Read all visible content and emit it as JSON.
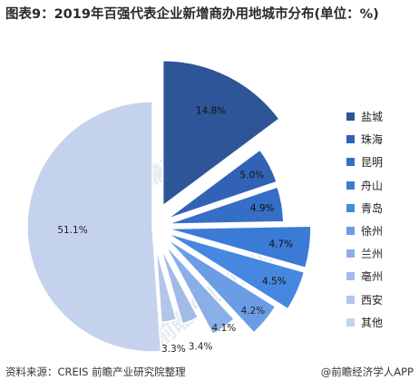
{
  "title": "图表9：2019年百强代表企业新增商办用地城市分布(单位：%)",
  "source_text": "资料来源：CREIS 前瞻产业研究院整理",
  "brand_text": "@前瞻经济学人APP",
  "watermark_text": "前瞻产业研究院",
  "chart_data": {
    "type": "pie",
    "title": "图表9：2019年百强代表企业新增商办用地城市分布(单位：%)",
    "unit": "%",
    "legend_position": "right",
    "categories": [
      "盐城",
      "珠海",
      "昆明",
      "舟山",
      "青岛",
      "徐州",
      "兰州",
      "亳州",
      "西安",
      "其他"
    ],
    "values": [
      14.8,
      5.0,
      4.9,
      4.7,
      4.5,
      4.2,
      4.1,
      3.4,
      3.3,
      51.1
    ],
    "labels": [
      "14.8%",
      "5.0%",
      "4.9%",
      "4.7%",
      "4.5%",
      "4.2%",
      "4.1%",
      "3.4%",
      "3.3%",
      "51.1%"
    ],
    "colors": [
      "#2e5597",
      "#3162b5",
      "#356ec7",
      "#3a7bd5",
      "#4688df",
      "#6a9de6",
      "#8aaee8",
      "#a2bbe6",
      "#b3c6ea",
      "#c5d2ee"
    ]
  }
}
